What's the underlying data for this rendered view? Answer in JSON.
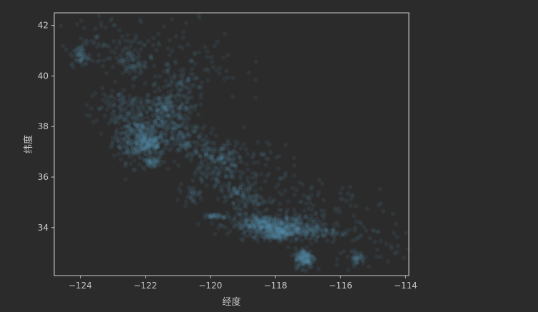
{
  "chart_data": {
    "type": "scatter",
    "xlabel": "经度",
    "ylabel": "纬度",
    "xlim": [
      -124.8,
      -113.9
    ],
    "ylim": [
      32.1,
      42.5
    ],
    "xticks": [
      -124,
      -122,
      -120,
      -118,
      -116,
      -114
    ],
    "yticks": [
      34,
      36,
      38,
      40,
      42
    ],
    "xtick_labels": [
      "−124",
      "−122",
      "−120",
      "−118",
      "−116",
      "−114"
    ],
    "ytick_labels": [
      "34",
      "36",
      "38",
      "40",
      "42"
    ],
    "grid": false,
    "point_alpha": 0.1,
    "colors": {
      "background": "#2b2b2b",
      "axes_frame": "#c8c8c8",
      "points": "#5b8fb5",
      "text": "#c8c8c8"
    },
    "clusters": [
      {
        "x": -122.2,
        "y": 37.6,
        "sx": 0.4,
        "sy": 0.5,
        "n": 320
      },
      {
        "x": -121.9,
        "y": 37.3,
        "sx": 0.25,
        "sy": 0.2,
        "n": 140
      },
      {
        "x": -121.4,
        "y": 38.6,
        "sx": 0.35,
        "sy": 0.35,
        "n": 160
      },
      {
        "x": -120.9,
        "y": 37.6,
        "sx": 0.45,
        "sy": 0.4,
        "n": 140
      },
      {
        "x": -119.8,
        "y": 36.8,
        "sx": 0.4,
        "sy": 0.3,
        "n": 140
      },
      {
        "x": -119.1,
        "y": 35.4,
        "sx": 0.3,
        "sy": 0.2,
        "n": 70
      },
      {
        "x": -118.3,
        "y": 34.1,
        "sx": 0.55,
        "sy": 0.2,
        "n": 360
      },
      {
        "x": -117.9,
        "y": 33.8,
        "sx": 0.3,
        "sy": 0.15,
        "n": 200
      },
      {
        "x": -117.3,
        "y": 34.0,
        "sx": 0.4,
        "sy": 0.25,
        "n": 120
      },
      {
        "x": -117.1,
        "y": 32.8,
        "sx": 0.15,
        "sy": 0.2,
        "n": 160
      },
      {
        "x": -116.5,
        "y": 33.8,
        "sx": 0.4,
        "sy": 0.2,
        "n": 60
      },
      {
        "x": -115.5,
        "y": 32.8,
        "sx": 0.12,
        "sy": 0.12,
        "n": 40
      },
      {
        "x": -121.8,
        "y": 36.6,
        "sx": 0.15,
        "sy": 0.12,
        "n": 50
      },
      {
        "x": -120.6,
        "y": 35.3,
        "sx": 0.15,
        "sy": 0.15,
        "n": 30
      },
      {
        "x": -119.8,
        "y": 34.45,
        "sx": 0.2,
        "sy": 0.05,
        "n": 40
      },
      {
        "x": -124.0,
        "y": 40.8,
        "sx": 0.12,
        "sy": 0.2,
        "n": 50
      },
      {
        "x": -122.4,
        "y": 40.5,
        "sx": 0.2,
        "sy": 0.25,
        "n": 50
      },
      {
        "x": -122.8,
        "y": 38.8,
        "sx": 0.5,
        "sy": 0.4,
        "n": 100
      },
      {
        "x": -121.0,
        "y": 39.3,
        "sx": 0.4,
        "sy": 0.5,
        "n": 80
      },
      {
        "x": -121.0,
        "y": 40.5,
        "sx": 1.0,
        "sy": 0.8,
        "n": 120
      },
      {
        "x": -123.0,
        "y": 41.3,
        "sx": 0.8,
        "sy": 0.5,
        "n": 80
      },
      {
        "x": -118.7,
        "y": 36.5,
        "sx": 0.6,
        "sy": 0.6,
        "n": 60
      },
      {
        "x": -117.0,
        "y": 35.0,
        "sx": 0.9,
        "sy": 0.6,
        "n": 80
      },
      {
        "x": -115.0,
        "y": 33.5,
        "sx": 0.8,
        "sy": 0.6,
        "n": 50
      },
      {
        "x": -119.9,
        "y": 36.0,
        "sx": 0.35,
        "sy": 0.3,
        "n": 60
      },
      {
        "x": -118.7,
        "y": 35.0,
        "sx": 0.3,
        "sy": 0.2,
        "n": 40
      }
    ]
  }
}
